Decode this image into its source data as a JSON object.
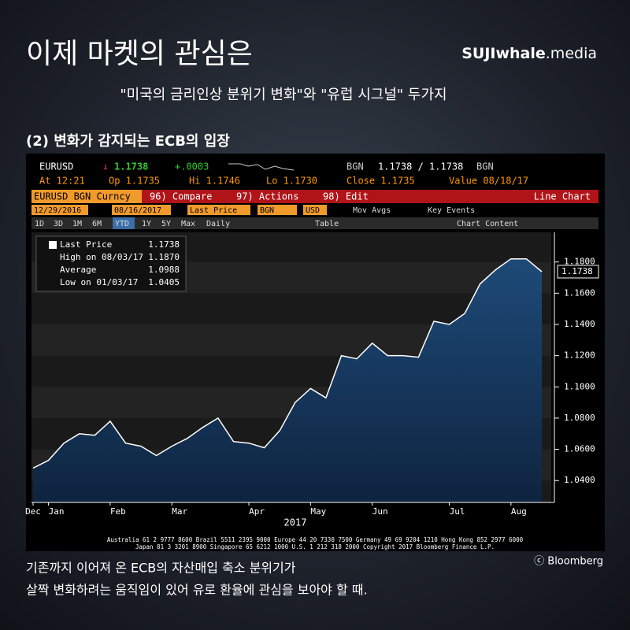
{
  "header": {
    "title": "이제 마켓의 관심은",
    "logo_bold": "SUJIwhale",
    "logo_light": ".media",
    "subtitle": "\"미국의 금리인상 분위기 변화\"와 \"유럽 시그널\" 두가지",
    "section": "(2) 변화가 감지되는 ECB의 입장"
  },
  "terminal": {
    "ticker": "EURUSD",
    "last": "1.1738",
    "change": "+.0003",
    "source": "BGN",
    "bid_ask": "1.1738 / 1.1738",
    "source2": "BGN",
    "at": "At 12:21",
    "op": "Op 1.1735",
    "hi": "Hi 1.1746",
    "lo": "Lo 1.1730",
    "close": "Close 1.1735",
    "value": "Value 08/18/17",
    "menu": [
      "EURUSD BGN Curncy",
      "96) Compare",
      "97) Actions",
      "98) Edit",
      "Line Chart"
    ],
    "fields": [
      "12/29/2016",
      "08/16/2017",
      "Last Price",
      "BGN",
      "USD",
      "Mov Avgs",
      "Key Events"
    ],
    "buttons": [
      "1D",
      "3D",
      "1M",
      "6M",
      "YTD",
      "1Y",
      "5Y",
      "Max",
      "Daily",
      "Table",
      "Chart Content"
    ],
    "footer": [
      "Australia 61 2 9777 8600 Brazil 5511 2395 9000 Europe 44 20 7330 7500 Germany 49 69 9204 1210 Hong Kong 852 2977 6000",
      "Japan 81 3 3201 8900        Singapore 65 6212 1000      U.S. 1 212 318 2000        Copyright 2017 Bloomberg Finance L.P."
    ]
  },
  "chart_data": {
    "type": "area",
    "x_label": "2017",
    "categories": [
      "Dec",
      "Jan",
      null,
      null,
      null,
      "Feb",
      null,
      null,
      null,
      "Mar",
      null,
      null,
      null,
      null,
      "Apr",
      null,
      null,
      null,
      "May",
      null,
      null,
      null,
      "Jun",
      null,
      null,
      null,
      null,
      "Jul",
      null,
      null,
      null,
      "Aug",
      null,
      null
    ],
    "series": [
      {
        "name": "Last Price",
        "color": "#ffffff",
        "values": [
          1.048,
          1.053,
          1.064,
          1.07,
          1.069,
          1.078,
          1.064,
          1.062,
          1.056,
          1.062,
          1.067,
          1.074,
          1.08,
          1.065,
          1.064,
          1.061,
          1.072,
          1.09,
          1.099,
          1.093,
          1.12,
          1.118,
          1.128,
          1.12,
          1.12,
          1.119,
          1.142,
          1.14,
          1.147,
          1.166,
          1.175,
          1.182,
          1.182,
          1.1738
        ],
        "value_labels": [
          null,
          null,
          null,
          null,
          null,
          null,
          null,
          null,
          null,
          null,
          null,
          null,
          null,
          null,
          null,
          null,
          null,
          null,
          null,
          null,
          null,
          null,
          null,
          null,
          null,
          null,
          null,
          null,
          null,
          null,
          null,
          null,
          null,
          "1.1738"
        ]
      }
    ],
    "stats": [
      [
        "Last Price",
        "1.1738"
      ],
      [
        "High on 08/03/17",
        "1.1870"
      ],
      [
        "Average",
        "1.0988"
      ],
      [
        "Low on 01/03/17",
        "1.0405"
      ]
    ],
    "ylim": [
      1.026,
      1.199
    ],
    "yticks": [
      {
        "value": 1.04,
        "label": "1.0400"
      },
      {
        "value": 1.06,
        "label": "1.0600"
      },
      {
        "value": 1.08,
        "label": "1.0800"
      },
      {
        "value": 1.1,
        "label": "1.1000"
      },
      {
        "value": 1.12,
        "label": "1.1200"
      },
      {
        "value": 1.14,
        "label": "1.1400"
      },
      {
        "value": 1.16,
        "label": "1.1600"
      },
      {
        "value": 1.18,
        "label": "1.1800"
      }
    ],
    "grid": true
  },
  "caption": {
    "credit": "ⓒ Bloomberg",
    "lines": [
      "기존까지 이어져 온 ECB의 자산매입 축소 분위기가",
      "살짝 변화하려는 움직임이 있어 유로 환율에 관심을 보아야 할 때."
    ]
  }
}
